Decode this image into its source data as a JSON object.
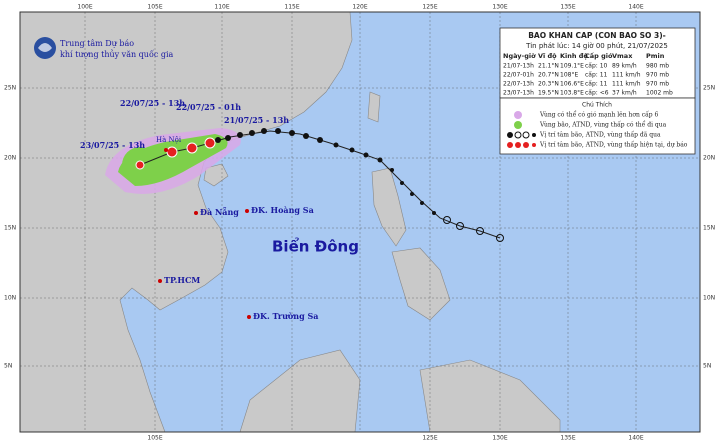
{
  "header": {
    "org_line1": "Trung tâm Dự báo",
    "org_line2": "khí tượng thủy văn quốc gia",
    "title": "BAO KHAN CAP (CON BAO SO 3)-",
    "issued": "Tin phát lúc: 14 giờ 00 phút, 21/07/2025"
  },
  "table": {
    "headers": [
      "Ngày-giờ",
      "Vĩ độ",
      "Kinh độ",
      "Cấp gió",
      "Vmax",
      "Pmin"
    ],
    "rows": [
      [
        "21/07-13h",
        "21.1°N",
        "109.1°E",
        "cấp: 10",
        "89 km/h",
        "980 mb"
      ],
      [
        "22/07-01h",
        "20.7°N",
        "108°E",
        "cấp: 11",
        "111 km/h",
        "970 mb"
      ],
      [
        "22/07-13h",
        "20.3°N",
        "106.6°E",
        "cấp: 11",
        "111 km/h",
        "970 mb"
      ],
      [
        "23/07-13h",
        "19.5°N",
        "103.8°E",
        "cấp: <6",
        "37 km/h",
        "1002 mb"
      ]
    ]
  },
  "legend": {
    "title": "Chú Thích",
    "items": [
      "Vùng có thể có gió mạnh lên hơn cấp 6",
      "Vùng bão, ATND, vùng thấp có thể đi qua",
      "Vị trí tâm bão, ATND, vùng thấp đã qua",
      "Vị trí tâm bão, ATND, vùng thấp hiện tại, dự báo"
    ]
  },
  "map": {
    "labels": [
      "22/07/25 - 13h",
      "22/07/25 - 01h",
      "21/07/25 - 13h",
      "23/07/25 - 13h",
      "Hà Nội",
      "Đà Nẵng",
      "ĐK. Hoàng Sa",
      "Biển Đông",
      "TP.HCM",
      "ĐK. Trường Sa"
    ]
  },
  "grid": {
    "top": [
      "100E",
      "105E",
      "110E",
      "115E",
      "120E",
      "125E",
      "130E",
      "135E",
      "140E"
    ],
    "left": [
      "25N",
      "20N",
      "15N",
      "10N",
      "5N"
    ],
    "right": [
      "25N",
      "20N",
      "15N",
      "10N",
      "5N"
    ],
    "bottom": [
      "105E",
      "125E",
      "130E",
      "135E",
      "140E"
    ]
  }
}
